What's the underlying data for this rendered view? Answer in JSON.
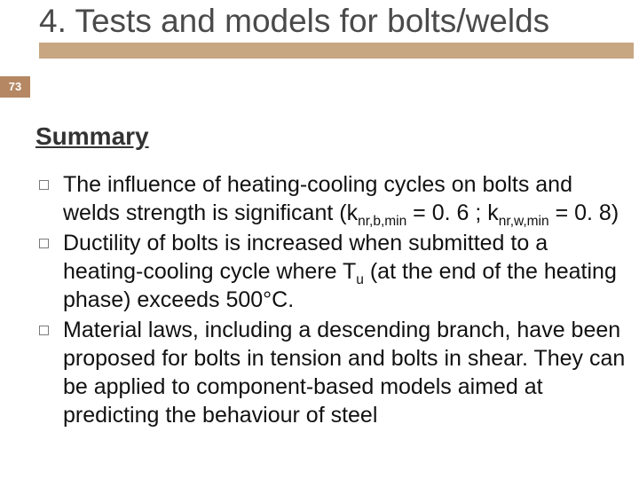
{
  "slide_number": "73",
  "title": "4. Tests and models for bolts/welds",
  "subheading": "Summary",
  "accent_color": "#c7a682",
  "badge_color": "#b58863",
  "bullets": [
    {
      "prefix": "The influence of heating-cooling cycles on bolts and welds strength is significant (k",
      "sub1": "nr,b,min",
      "mid1": " = 0. 6 ; k",
      "sub2": "nr,w,min",
      "suffix": " = 0. 8)"
    },
    {
      "prefix": "Ductility of bolts is increased when submitted to a heating-cooling cycle where T",
      "sub1": "u",
      "mid1": " (at the end of the heating phase) exceeds 500°C.",
      "sub2": "",
      "suffix": ""
    },
    {
      "prefix": "Material laws, including a descending branch, have been proposed for bolts in tension and bolts in shear. They can be applied to component-based models aimed at predicting the behaviour of steel",
      "sub1": "",
      "mid1": "",
      "sub2": "",
      "suffix": ""
    }
  ]
}
